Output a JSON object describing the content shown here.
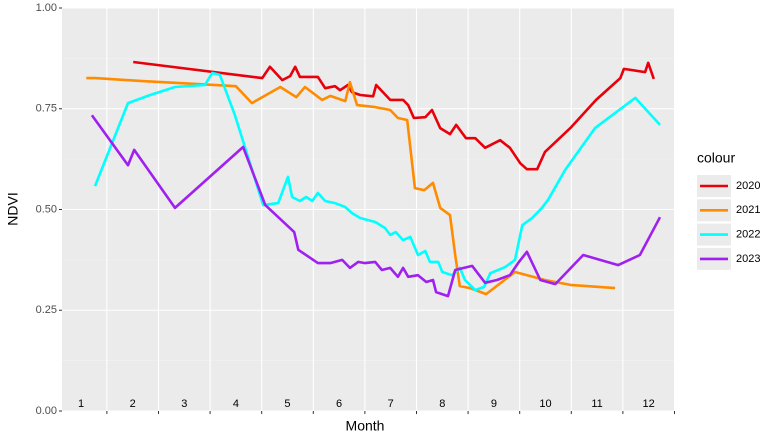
{
  "chart_data": {
    "type": "line",
    "x_label": "Month",
    "y_label": "NDVI",
    "legend_title": "colour",
    "xlim": [
      0.63,
      12.51
    ],
    "ylim": [
      0,
      1
    ],
    "xticks": [
      1,
      2,
      3,
      4,
      5,
      6,
      7,
      8,
      9,
      10,
      11,
      12
    ],
    "xbreaks": [
      1.5,
      2.5,
      3.5,
      4.5,
      5.5,
      6.5,
      7.5,
      8.5,
      9.5,
      10.5,
      11.5,
      12.5
    ],
    "yticks": [
      {
        "value": 0,
        "label": "0.00"
      },
      {
        "value": 0.25,
        "label": "0.25"
      },
      {
        "value": 0.5,
        "label": "0.50"
      },
      {
        "value": 0.75,
        "label": "0.75"
      },
      {
        "value": 1,
        "label": "1.00"
      }
    ],
    "yminor": [
      0.125,
      0.375,
      0.625,
      0.875
    ],
    "grid": true,
    "legend": "right",
    "series": [
      {
        "name": "2020",
        "color": "#e8000b",
        "x": [
          2.01,
          4.51,
          4.66,
          4.9,
          5.05,
          5.15,
          5.24,
          5.59,
          5.73,
          5.92,
          6.02,
          6.17,
          6.25,
          6.41,
          6.66,
          6.72,
          6.99,
          7.24,
          7.34,
          7.45,
          7.67,
          7.8,
          7.96,
          8.15,
          8.27,
          8.46,
          8.64,
          8.83,
          9.12,
          9.31,
          9.51,
          9.64,
          9.84,
          9.99,
          10.48,
          10.98,
          11.45,
          11.52,
          11.93,
          11.99,
          12.1
        ],
        "values": [
          0.866,
          0.826,
          0.854,
          0.821,
          0.831,
          0.854,
          0.829,
          0.829,
          0.801,
          0.806,
          0.796,
          0.809,
          0.791,
          0.784,
          0.781,
          0.809,
          0.772,
          0.772,
          0.759,
          0.727,
          0.729,
          0.747,
          0.702,
          0.687,
          0.71,
          0.677,
          0.677,
          0.653,
          0.672,
          0.653,
          0.615,
          0.6,
          0.6,
          0.643,
          0.702,
          0.772,
          0.826,
          0.849,
          0.841,
          0.864,
          0.824
        ]
      },
      {
        "name": "2021",
        "color": "#ff8c00",
        "x": [
          1.1,
          1.27,
          2.14,
          3.31,
          4.0,
          4.31,
          4.86,
          5.17,
          5.34,
          5.67,
          5.83,
          6.12,
          6.21,
          6.35,
          6.7,
          6.99,
          7.14,
          7.32,
          7.47,
          7.65,
          7.82,
          7.96,
          8.15,
          8.25,
          8.34,
          8.54,
          8.85,
          9.41,
          9.99,
          10.48,
          11.35
        ],
        "values": [
          0.826,
          0.826,
          0.819,
          0.811,
          0.806,
          0.764,
          0.804,
          0.779,
          0.804,
          0.772,
          0.782,
          0.769,
          0.816,
          0.759,
          0.754,
          0.747,
          0.727,
          0.722,
          0.553,
          0.548,
          0.566,
          0.504,
          0.486,
          0.387,
          0.31,
          0.305,
          0.29,
          0.345,
          0.325,
          0.313,
          0.305
        ]
      },
      {
        "name": "2022",
        "color": "#00ffff",
        "x": [
          1.27,
          1.91,
          2.34,
          2.82,
          3.4,
          3.54,
          3.69,
          3.98,
          4.53,
          4.82,
          5.01,
          5.09,
          5.24,
          5.36,
          5.48,
          5.59,
          5.73,
          5.92,
          6.12,
          6.25,
          6.41,
          6.7,
          6.89,
          6.99,
          7.1,
          7.24,
          7.38,
          7.53,
          7.67,
          7.76,
          7.92,
          8.0,
          8.19,
          8.34,
          8.44,
          8.64,
          8.81,
          8.93,
          9.22,
          9.41,
          9.55,
          9.74,
          9.93,
          10.05,
          10.38,
          10.96,
          11.74,
          12.22
        ],
        "values": [
          0.558,
          0.764,
          0.784,
          0.804,
          0.809,
          0.839,
          0.834,
          0.734,
          0.511,
          0.516,
          0.581,
          0.531,
          0.521,
          0.531,
          0.521,
          0.541,
          0.521,
          0.516,
          0.506,
          0.491,
          0.479,
          0.469,
          0.454,
          0.437,
          0.444,
          0.424,
          0.432,
          0.387,
          0.397,
          0.37,
          0.37,
          0.345,
          0.337,
          0.355,
          0.325,
          0.3,
          0.308,
          0.342,
          0.357,
          0.375,
          0.461,
          0.479,
          0.504,
          0.524,
          0.598,
          0.702,
          0.777,
          0.71
        ]
      },
      {
        "name": "2023",
        "color": "#a020f0",
        "x": [
          1.21,
          1.91,
          2.03,
          2.82,
          4.14,
          4.57,
          5.13,
          5.21,
          5.59,
          5.83,
          6.06,
          6.21,
          6.37,
          6.5,
          6.7,
          6.83,
          6.99,
          7.14,
          7.24,
          7.34,
          7.53,
          7.69,
          7.82,
          7.88,
          8.11,
          8.25,
          8.58,
          8.83,
          9.06,
          9.31,
          9.47,
          9.64,
          9.9,
          10.19,
          10.73,
          11.41,
          11.83,
          12.22
        ],
        "values": [
          0.734,
          0.61,
          0.648,
          0.504,
          0.655,
          0.511,
          0.444,
          0.4,
          0.367,
          0.367,
          0.375,
          0.355,
          0.37,
          0.367,
          0.37,
          0.35,
          0.355,
          0.333,
          0.355,
          0.333,
          0.337,
          0.32,
          0.325,
          0.295,
          0.285,
          0.35,
          0.36,
          0.318,
          0.325,
          0.337,
          0.367,
          0.395,
          0.325,
          0.315,
          0.387,
          0.362,
          0.387,
          0.481
        ]
      }
    ]
  }
}
